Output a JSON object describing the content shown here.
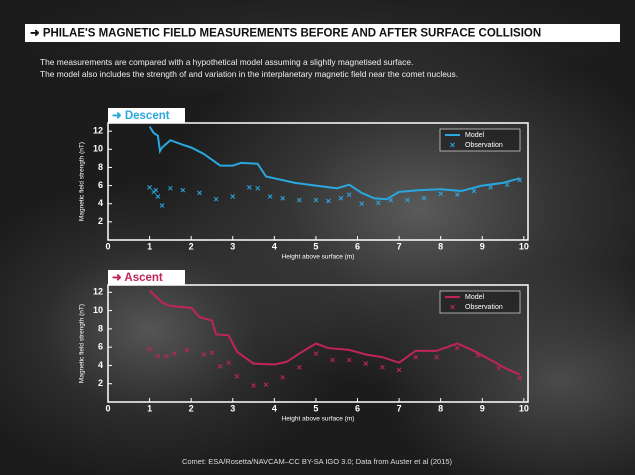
{
  "title": "➜ PHILAE'S MAGNETIC FIELD MEASUREMENTS BEFORE AND AFTER SURFACE COLLISION",
  "subtitle": [
    "The measurements are compared with a hypothetical model assuming a slightly magnetised surface.",
    "The model also includes the strength of and variation in the interplanetary magnetic field near the comet nucleus."
  ],
  "credit": "Comet: ESA/Rosetta/NAVCAM–CC BY-SA IGO 3.0; Data from Auster et al (2015)",
  "chart_data": [
    {
      "type": "line",
      "title": "➜ Descent",
      "color": "#29a8e0",
      "xlabel": "Height above surface (m)",
      "ylabel": "Magnetic field strength (nT)",
      "xlim": [
        0,
        10.1
      ],
      "ylim": [
        0,
        12.9
      ],
      "xticks": [
        0,
        1,
        2,
        3,
        4,
        5,
        6,
        7,
        8,
        9,
        10
      ],
      "yticks": [
        2,
        4,
        6,
        8,
        10,
        12
      ],
      "legend": "top-right",
      "series": [
        {
          "name": "Model",
          "color": "#29a8e0",
          "marker": "line",
          "x": [
            1.0,
            1.1,
            1.2,
            1.25,
            1.3,
            1.5,
            1.8,
            2.0,
            2.3,
            2.7,
            3.0,
            3.2,
            3.6,
            3.8,
            4.0,
            4.5,
            5.0,
            5.5,
            5.8,
            6.1,
            6.4,
            6.7,
            7.0,
            7.5,
            8.0,
            8.5,
            9.0,
            9.5,
            9.9
          ],
          "values": [
            12.5,
            11.8,
            11.5,
            9.8,
            10.2,
            11.0,
            10.5,
            10.2,
            9.5,
            8.2,
            8.2,
            8.5,
            8.4,
            7.0,
            6.8,
            6.3,
            6.0,
            5.7,
            6.1,
            5.2,
            4.6,
            4.5,
            5.3,
            5.5,
            5.6,
            5.4,
            6.0,
            6.3,
            6.8
          ]
        },
        {
          "name": "Observation",
          "color": "#29a8e0",
          "marker": "x",
          "x": [
            1.0,
            1.1,
            1.15,
            1.2,
            1.3,
            1.5,
            1.8,
            2.2,
            2.6,
            3.0,
            3.4,
            3.6,
            3.9,
            4.2,
            4.6,
            5.0,
            5.3,
            5.6,
            5.8,
            6.1,
            6.5,
            6.8,
            7.2,
            7.6,
            8.0,
            8.4,
            8.8,
            9.2,
            9.6,
            9.9
          ],
          "values": [
            5.8,
            5.3,
            5.5,
            4.8,
            3.8,
            5.7,
            5.5,
            5.2,
            4.5,
            4.8,
            5.8,
            5.7,
            4.8,
            4.6,
            4.4,
            4.4,
            4.3,
            4.6,
            5.0,
            4.0,
            4.1,
            4.4,
            4.4,
            4.6,
            5.1,
            5.0,
            5.4,
            5.8,
            6.1,
            6.6
          ]
        }
      ]
    },
    {
      "type": "line",
      "title": "➜ Ascent",
      "color": "#c0245c",
      "xlabel": "Height above surface (m)",
      "ylabel": "Magnetic field strength (nT)",
      "xlim": [
        0,
        10.1
      ],
      "ylim": [
        0,
        12.8
      ],
      "xticks": [
        0,
        1,
        2,
        3,
        4,
        5,
        6,
        7,
        8,
        9,
        10
      ],
      "yticks": [
        2,
        4,
        6,
        8,
        10,
        12
      ],
      "legend": "top-right",
      "series": [
        {
          "name": "Model",
          "color": "#c0245c",
          "marker": "line",
          "x": [
            1.0,
            1.3,
            1.5,
            2.0,
            2.2,
            2.5,
            2.6,
            2.9,
            3.1,
            3.5,
            4.0,
            4.3,
            4.6,
            5.0,
            5.3,
            5.8,
            6.2,
            6.6,
            7.0,
            7.4,
            7.9,
            8.4,
            8.8,
            9.2,
            9.6,
            9.9
          ],
          "values": [
            12.2,
            10.9,
            10.5,
            10.3,
            9.3,
            8.9,
            7.4,
            7.3,
            5.5,
            4.2,
            4.1,
            4.4,
            5.3,
            6.4,
            5.9,
            5.7,
            5.2,
            4.9,
            4.3,
            5.6,
            5.6,
            6.4,
            5.6,
            4.6,
            3.6,
            3.0
          ]
        },
        {
          "name": "Observation",
          "color": "#c0245c",
          "marker": "x",
          "x": [
            1.0,
            1.2,
            1.4,
            1.6,
            1.9,
            2.3,
            2.5,
            2.7,
            2.9,
            3.1,
            3.5,
            3.8,
            4.2,
            4.6,
            5.0,
            5.4,
            5.8,
            6.2,
            6.6,
            7.0,
            7.4,
            7.9,
            8.4,
            8.9,
            9.4,
            9.9
          ],
          "values": [
            5.8,
            5.0,
            5.0,
            5.3,
            5.7,
            5.2,
            5.4,
            3.9,
            4.3,
            2.8,
            1.8,
            1.9,
            2.7,
            3.8,
            5.3,
            4.6,
            4.6,
            4.2,
            3.8,
            3.5,
            4.9,
            4.9,
            5.9,
            5.1,
            3.7,
            2.6
          ]
        }
      ]
    }
  ]
}
